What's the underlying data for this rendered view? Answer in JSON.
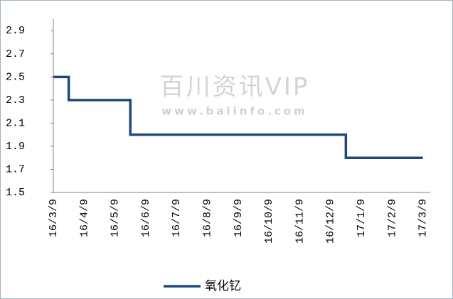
{
  "chart_data": {
    "type": "line",
    "categories": [
      "16/3/9",
      "16/4/9",
      "16/5/9",
      "16/6/9",
      "16/7/9",
      "16/8/9",
      "16/9/9",
      "16/10/9",
      "16/11/9",
      "16/12/9",
      "17/1/9",
      "17/2/9",
      "17/3/9"
    ],
    "series": [
      {
        "name": "氧化钇",
        "color": "#1f497d",
        "values": [
          2.5,
          2.3,
          2.3,
          2.0,
          2.0,
          2.0,
          2.0,
          2.0,
          2.0,
          2.0,
          1.8,
          1.8,
          1.8
        ]
      }
    ],
    "step": "mid",
    "ylim": [
      1.5,
      3.0
    ],
    "yticks": [
      1.5,
      1.7,
      1.9,
      2.1,
      2.3,
      2.5,
      2.7,
      2.9
    ],
    "grid": false,
    "legend": "bottom",
    "watermark": {
      "title": "百川资讯VIP",
      "url": "www.baiinfo.com"
    }
  }
}
